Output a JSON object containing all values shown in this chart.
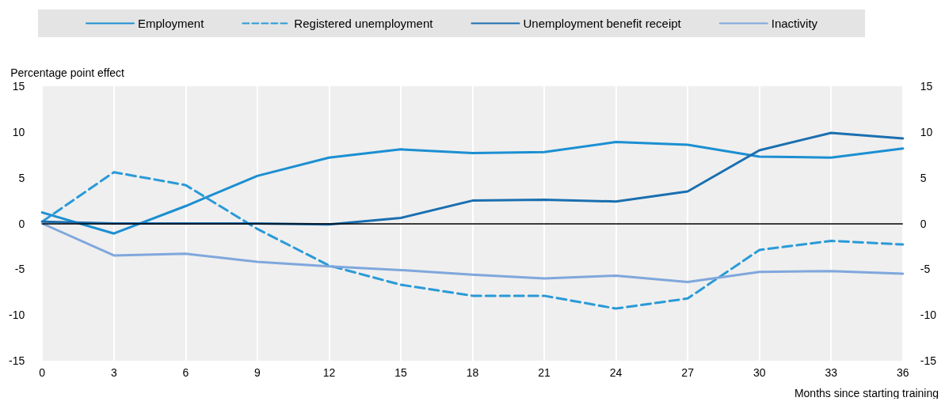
{
  "chart_data": {
    "type": "line",
    "xlabel": "Months since starting training",
    "ylabel": "Percentage point effect",
    "x": [
      0,
      3,
      6,
      9,
      12,
      15,
      18,
      21,
      24,
      27,
      30,
      33,
      36
    ],
    "series": [
      {
        "name": "Employment",
        "color": "#1b8fd2",
        "line_style": "solid",
        "values": [
          1.2,
          -1.1,
          1.9,
          5.2,
          7.2,
          8.1,
          7.7,
          7.8,
          8.9,
          8.6,
          7.3,
          7.2,
          8.2
        ]
      },
      {
        "name": "Registered unemployment",
        "color": "#2a9ad8",
        "line_style": "dashed",
        "values": [
          0.2,
          5.6,
          4.2,
          -0.6,
          -4.6,
          -6.7,
          -7.9,
          -7.9,
          -9.3,
          -8.2,
          -2.9,
          -1.9,
          -2.3
        ]
      },
      {
        "name": "Unemployment benefit receipt",
        "color": "#1a6fb0",
        "line_style": "solid",
        "values": [
          0.2,
          0,
          0,
          0,
          -0.1,
          0.6,
          2.5,
          2.6,
          2.4,
          3.5,
          8.0,
          9.9,
          9.3
        ]
      },
      {
        "name": "Inactivity",
        "color": "#7fa7dc",
        "line_style": "solid",
        "values": [
          0,
          -3.5,
          -3.3,
          -4.2,
          -4.7,
          -5.1,
          -5.6,
          -6.0,
          -5.7,
          -6.4,
          -5.3,
          -5.2,
          -5.5
        ]
      }
    ],
    "xlim": [
      0,
      36
    ],
    "xticks": [
      0,
      3,
      6,
      9,
      12,
      15,
      18,
      21,
      24,
      27,
      30,
      33,
      36
    ],
    "ylim": [
      -15,
      15
    ],
    "yticks": [
      -15,
      -10,
      -5,
      0,
      5,
      10,
      15
    ],
    "y2lim": [
      -15,
      15
    ],
    "y2ticks": [
      -15,
      -10,
      -5,
      0,
      5,
      10,
      15
    ],
    "ref_lines": [
      {
        "axis": "y",
        "value": 0,
        "color": "#000000"
      }
    ],
    "grid": "x",
    "legend": "top",
    "marker": "none"
  }
}
